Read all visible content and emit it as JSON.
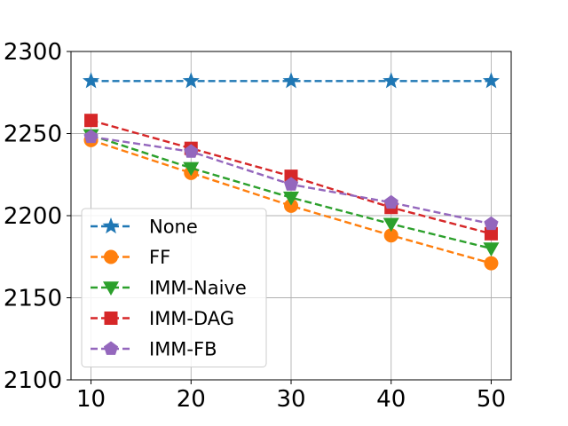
{
  "chart_data": {
    "type": "line",
    "title": "",
    "xlabel": "",
    "ylabel": "",
    "x": [
      10,
      20,
      30,
      40,
      50
    ],
    "xlim": [
      8,
      52
    ],
    "ylim": [
      2100,
      2300
    ],
    "xticks": [
      10,
      20,
      30,
      40,
      50
    ],
    "yticks": [
      2100,
      2150,
      2200,
      2250,
      2300
    ],
    "xtick_labels": [
      "10",
      "20",
      "30",
      "40",
      "50"
    ],
    "ytick_labels": [
      "2100",
      "2150",
      "2200",
      "2250",
      "2300"
    ],
    "grid": true,
    "legend_position": "lower-left",
    "series": [
      {
        "name": "None",
        "values": [
          2282,
          2282,
          2282,
          2282,
          2282
        ],
        "color": "#1f77b4",
        "marker": "star"
      },
      {
        "name": "FF",
        "values": [
          2246,
          2226,
          2206,
          2188,
          2171
        ],
        "color": "#ff7f0e",
        "marker": "circle"
      },
      {
        "name": "IMM-Naive",
        "values": [
          2249,
          2229,
          2211,
          2195,
          2180
        ],
        "color": "#2ca02c",
        "marker": "triangle-down"
      },
      {
        "name": "IMM-DAG",
        "values": [
          2258,
          2241,
          2224,
          2205,
          2189
        ],
        "color": "#d62728",
        "marker": "square"
      },
      {
        "name": "IMM-FB",
        "values": [
          2248,
          2239,
          2219,
          2208,
          2195
        ],
        "color": "#9467bd",
        "marker": "pentagon"
      }
    ]
  }
}
